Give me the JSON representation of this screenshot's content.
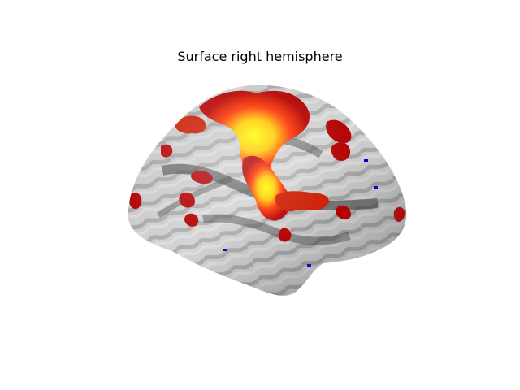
{
  "figure": {
    "title": "Surface right hemisphere",
    "colors": {
      "background": "#ffffff",
      "positive_low": "#b30000",
      "positive_mid": "#ff3300",
      "positive_high": "#ffff00",
      "negative": "#0000cc",
      "surface_light": "#e6e6e6",
      "surface_dark": "#1e1e1e"
    }
  }
}
